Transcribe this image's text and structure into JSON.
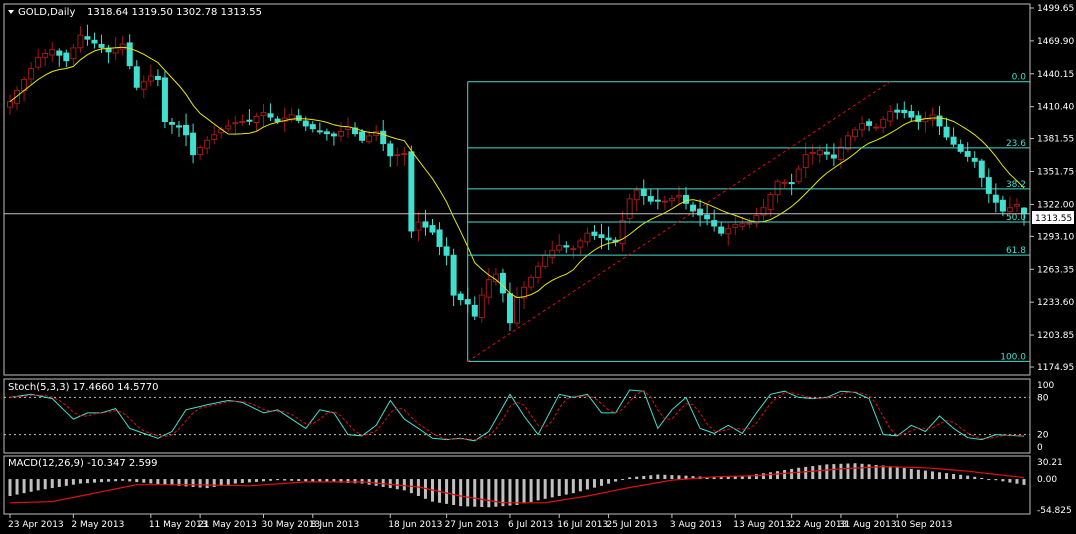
{
  "colors": {
    "background": "#000000",
    "frame": "#c0c0c0",
    "text": "#ffffff",
    "bull": "#000000",
    "bull_outline": "#ffffff",
    "bull_fill_cyan": "#40e0d0",
    "bear": "#40e0d0",
    "bear_candle_red": "#a01818",
    "ma": "#e8e800",
    "fib": "#40e0d0",
    "trend": "#e01010",
    "stoch_main": "#40e0d0",
    "stoch_signal": "#e01010",
    "macd_hist": "#c0c0c0",
    "macd_signal": "#e01010",
    "level_line": "#c0c0c0"
  },
  "price_panel": {
    "title": "GOLD,Daily",
    "ohlc": "1318.64 1319.50 1302.78 1313.55",
    "current_price": "1313.55",
    "axis_ticks": [
      "1499.65",
      "1469.90",
      "1440.15",
      "1410.40",
      "1381.55",
      "1351.75",
      "1322.00",
      "1293.10",
      "1263.35",
      "1233.60",
      "1203.85",
      "1174.95"
    ],
    "tick_values": [
      1499.65,
      1469.9,
      1440.15,
      1410.4,
      1381.55,
      1351.75,
      1322.0,
      1293.1,
      1263.35,
      1233.6,
      1203.85,
      1174.95
    ],
    "fib_levels": [
      {
        "label": "0.0",
        "price": 1433.0
      },
      {
        "label": "23.6",
        "price": 1373.1
      },
      {
        "label": "38.2",
        "price": 1336.1
      },
      {
        "label": "50.0",
        "price": 1306.1
      },
      {
        "label": "61.8",
        "price": 1276.1
      },
      {
        "label": "100.0",
        "price": 1180.0
      }
    ],
    "fib_start_bar": 65,
    "trend_line": {
      "from_bar": 65,
      "from_price": 1180.0,
      "to_bar": 125,
      "to_price": 1433.0
    }
  },
  "stoch_panel": {
    "title": "Stoch(5,3,3) 17.4660 14.5770",
    "axis_ticks": [
      "100",
      "80",
      "20",
      "0"
    ],
    "tick_values": [
      100,
      80,
      20,
      0
    ]
  },
  "macd_panel": {
    "title": "MACD(12,26,9) -10.347 2.599",
    "axis_ticks": [
      "30.21",
      "0.00",
      "-54.825"
    ],
    "tick_values": [
      30.21,
      0.0,
      -54.825
    ]
  },
  "x_axis": {
    "labels": [
      "23 Apr 2013",
      "2 May 2013",
      "11 May 2013",
      "21 May 2013",
      "30 May 2013",
      "8 Jun 2013",
      "18 Jun 2013",
      "27 Jun 2013",
      "6 Jul 2013",
      "16 Jul 2013",
      "25 Jul 2013",
      "3 Aug 2013",
      "13 Aug 2013",
      "22 Aug 2013",
      "31 Aug 2013",
      "10 Sep 2013"
    ],
    "label_bars": [
      0,
      9,
      20,
      27,
      36,
      43,
      54,
      62,
      71,
      78,
      85,
      94,
      103,
      111,
      118,
      126
    ]
  },
  "chart_data": {
    "type": "candlestick",
    "symbol": "GOLD",
    "timeframe": "Daily",
    "bar_count": 145,
    "start_date": "23 Apr 2013",
    "last_bar": {
      "open": 1318.64,
      "high": 1319.5,
      "low": 1302.78,
      "close": 1313.55
    },
    "ylim": [
      1174.95,
      1499.65
    ],
    "close_anchors": [
      [
        0,
        1415
      ],
      [
        2,
        1435
      ],
      [
        4,
        1455
      ],
      [
        6,
        1462
      ],
      [
        8,
        1452
      ],
      [
        10,
        1475
      ],
      [
        12,
        1468
      ],
      [
        14,
        1460
      ],
      [
        16,
        1467
      ],
      [
        18,
        1428
      ],
      [
        20,
        1438
      ],
      [
        21,
        1435
      ],
      [
        22,
        1397
      ],
      [
        24,
        1392
      ],
      [
        25,
        1385
      ],
      [
        26,
        1367
      ],
      [
        28,
        1380
      ],
      [
        30,
        1390
      ],
      [
        32,
        1396
      ],
      [
        34,
        1398
      ],
      [
        36,
        1405
      ],
      [
        38,
        1397
      ],
      [
        40,
        1403
      ],
      [
        42,
        1393
      ],
      [
        44,
        1388
      ],
      [
        46,
        1384
      ],
      [
        48,
        1392
      ],
      [
        50,
        1380
      ],
      [
        52,
        1388
      ],
      [
        54,
        1366
      ],
      [
        56,
        1368
      ],
      [
        57,
        1298
      ],
      [
        58,
        1306
      ],
      [
        60,
        1297
      ],
      [
        61,
        1284
      ],
      [
        62,
        1276
      ],
      [
        63,
        1240
      ],
      [
        65,
        1232
      ],
      [
        66,
        1221
      ],
      [
        67,
        1240
      ],
      [
        68,
        1254
      ],
      [
        69,
        1259
      ],
      [
        70,
        1242
      ],
      [
        71,
        1215
      ],
      [
        72,
        1238
      ],
      [
        74,
        1256
      ],
      [
        76,
        1276
      ],
      [
        78,
        1285
      ],
      [
        80,
        1282
      ],
      [
        82,
        1296
      ],
      [
        84,
        1292
      ],
      [
        86,
        1288
      ],
      [
        88,
        1327
      ],
      [
        89,
        1335
      ],
      [
        91,
        1325
      ],
      [
        93,
        1325
      ],
      [
        95,
        1330
      ],
      [
        97,
        1316
      ],
      [
        99,
        1309
      ],
      [
        101,
        1296
      ],
      [
        103,
        1304
      ],
      [
        105,
        1305
      ],
      [
        107,
        1319
      ],
      [
        109,
        1343
      ],
      [
        111,
        1341
      ],
      [
        113,
        1367
      ],
      [
        115,
        1371
      ],
      [
        117,
        1364
      ],
      [
        119,
        1384
      ],
      [
        121,
        1395
      ],
      [
        123,
        1392
      ],
      [
        125,
        1406
      ],
      [
        127,
        1405
      ],
      [
        129,
        1397
      ],
      [
        131,
        1403
      ],
      [
        133,
        1383
      ],
      [
        135,
        1370
      ],
      [
        137,
        1361
      ],
      [
        139,
        1332
      ],
      [
        141,
        1316
      ],
      [
        143,
        1322
      ],
      [
        144,
        1313.55
      ]
    ],
    "stoch_anchors": [
      [
        0,
        80
      ],
      [
        3,
        85
      ],
      [
        6,
        78
      ],
      [
        9,
        45
      ],
      [
        11,
        55
      ],
      [
        13,
        55
      ],
      [
        15,
        62
      ],
      [
        17,
        30
      ],
      [
        19,
        22
      ],
      [
        21,
        14
      ],
      [
        23,
        25
      ],
      [
        25,
        60
      ],
      [
        28,
        68
      ],
      [
        31,
        75
      ],
      [
        33,
        72
      ],
      [
        36,
        55
      ],
      [
        38,
        60
      ],
      [
        40,
        45
      ],
      [
        42,
        30
      ],
      [
        44,
        60
      ],
      [
        46,
        55
      ],
      [
        48,
        20
      ],
      [
        50,
        18
      ],
      [
        52,
        35
      ],
      [
        54,
        75
      ],
      [
        56,
        45
      ],
      [
        58,
        30
      ],
      [
        60,
        14
      ],
      [
        62,
        12
      ],
      [
        64,
        14
      ],
      [
        66,
        10
      ],
      [
        68,
        25
      ],
      [
        71,
        85
      ],
      [
        73,
        50
      ],
      [
        75,
        20
      ],
      [
        78,
        85
      ],
      [
        80,
        80
      ],
      [
        82,
        85
      ],
      [
        84,
        55
      ],
      [
        86,
        55
      ],
      [
        88,
        92
      ],
      [
        90,
        90
      ],
      [
        92,
        30
      ],
      [
        94,
        60
      ],
      [
        96,
        80
      ],
      [
        98,
        30
      ],
      [
        100,
        22
      ],
      [
        102,
        35
      ],
      [
        104,
        22
      ],
      [
        106,
        55
      ],
      [
        108,
        85
      ],
      [
        110,
        90
      ],
      [
        112,
        80
      ],
      [
        114,
        78
      ],
      [
        116,
        80
      ],
      [
        118,
        90
      ],
      [
        120,
        88
      ],
      [
        122,
        78
      ],
      [
        124,
        20
      ],
      [
        126,
        18
      ],
      [
        128,
        35
      ],
      [
        130,
        25
      ],
      [
        132,
        50
      ],
      [
        134,
        30
      ],
      [
        136,
        15
      ],
      [
        138,
        12
      ],
      [
        140,
        20
      ],
      [
        144,
        17.47
      ]
    ],
    "macd_anchors": [
      [
        0,
        -30
      ],
      [
        4,
        -20
      ],
      [
        10,
        -8
      ],
      [
        16,
        -3
      ],
      [
        22,
        -10
      ],
      [
        28,
        -16
      ],
      [
        32,
        -8
      ],
      [
        38,
        -2
      ],
      [
        44,
        -5
      ],
      [
        50,
        -8
      ],
      [
        56,
        -20
      ],
      [
        60,
        -40
      ],
      [
        64,
        -48
      ],
      [
        68,
        -50
      ],
      [
        72,
        -46
      ],
      [
        76,
        -35
      ],
      [
        80,
        -25
      ],
      [
        84,
        -12
      ],
      [
        88,
        3
      ],
      [
        92,
        8
      ],
      [
        96,
        6
      ],
      [
        100,
        3
      ],
      [
        104,
        5
      ],
      [
        108,
        12
      ],
      [
        112,
        20
      ],
      [
        116,
        26
      ],
      [
        120,
        28
      ],
      [
        124,
        24
      ],
      [
        128,
        18
      ],
      [
        132,
        12
      ],
      [
        136,
        6
      ],
      [
        140,
        -2
      ],
      [
        144,
        -10.347
      ]
    ],
    "macd_signal_anchors": [
      [
        0,
        -42
      ],
      [
        6,
        -40
      ],
      [
        12,
        -25
      ],
      [
        18,
        -10
      ],
      [
        26,
        -10
      ],
      [
        34,
        -12
      ],
      [
        42,
        -5
      ],
      [
        50,
        -5
      ],
      [
        58,
        -14
      ],
      [
        64,
        -30
      ],
      [
        70,
        -42
      ],
      [
        76,
        -42
      ],
      [
        82,
        -30
      ],
      [
        88,
        -15
      ],
      [
        94,
        -2
      ],
      [
        100,
        4
      ],
      [
        106,
        6
      ],
      [
        112,
        12
      ],
      [
        118,
        18
      ],
      [
        124,
        22
      ],
      [
        130,
        20
      ],
      [
        136,
        14
      ],
      [
        144,
        2.599
      ]
    ]
  }
}
